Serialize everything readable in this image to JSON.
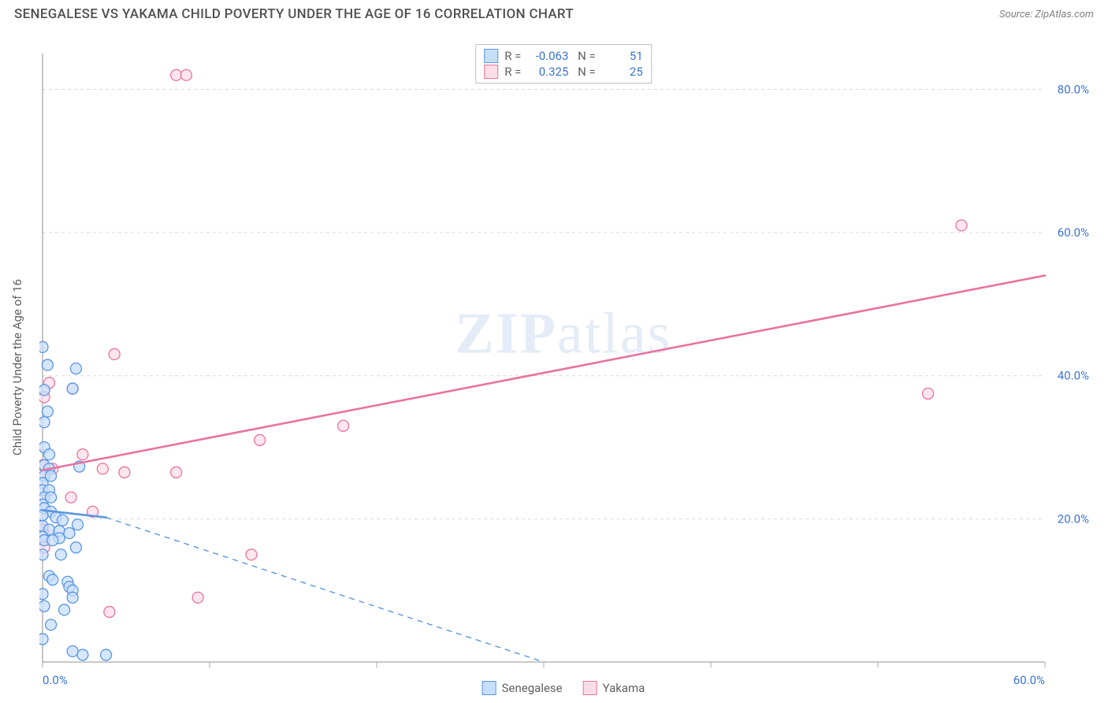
{
  "header": {
    "title": "SENEGALESE VS YAKAMA CHILD POVERTY UNDER THE AGE OF 16 CORRELATION CHART",
    "source": "Source: ZipAtlas.com"
  },
  "ylabel": "Child Poverty Under the Age of 16",
  "watermark": {
    "bold": "ZIP",
    "rest": "atlas"
  },
  "chart": {
    "type": "scatter",
    "xlim": [
      0,
      60
    ],
    "ylim": [
      0,
      85
    ],
    "x_ticks": [
      0,
      10,
      20,
      30,
      40,
      50,
      60
    ],
    "x_tick_labels": [
      "0.0%",
      "",
      "",
      "",
      "",
      "",
      "60.0%"
    ],
    "y_ticks": [
      0,
      20,
      40,
      60,
      80
    ],
    "y_tick_labels": [
      "",
      "20.0%",
      "40.0%",
      "60.0%",
      "80.0%"
    ],
    "grid_color": "#d9d9d9",
    "axis_color": "#a8a8a8",
    "axis_label_color": "#3b74d1",
    "background_color": "#ffffff",
    "marker_radius": 7,
    "marker_stroke_width": 1.3,
    "trend_width": 2.6
  },
  "series": [
    {
      "name": "Senegalese",
      "fill": "#c7defc",
      "stroke": "#5a96e0",
      "stats": {
        "R": "-0.063",
        "N": "51"
      },
      "trend": {
        "x1": 0,
        "y1": 21.2,
        "x2": 3.8,
        "y2": 20.2,
        "dashed_ext": {
          "x2": 30,
          "y2": 0
        }
      },
      "points": [
        [
          0.0,
          44.0
        ],
        [
          0.3,
          41.5
        ],
        [
          2.0,
          41.0
        ],
        [
          0.1,
          38.0
        ],
        [
          1.8,
          38.2
        ],
        [
          0.3,
          35.0
        ],
        [
          0.1,
          33.5
        ],
        [
          0.1,
          30.0
        ],
        [
          0.4,
          29.0
        ],
        [
          0.1,
          27.5
        ],
        [
          0.4,
          27.0
        ],
        [
          2.2,
          27.3
        ],
        [
          0.1,
          26.0
        ],
        [
          0.5,
          26.0
        ],
        [
          0.0,
          25.0
        ],
        [
          0.0,
          24.0
        ],
        [
          0.4,
          24.0
        ],
        [
          0.1,
          23.0
        ],
        [
          0.5,
          23.0
        ],
        [
          0.0,
          22.0
        ],
        [
          0.1,
          21.5
        ],
        [
          0.5,
          21.0
        ],
        [
          0.0,
          20.5
        ],
        [
          0.8,
          20.2
        ],
        [
          1.2,
          19.8
        ],
        [
          2.1,
          19.2
        ],
        [
          0.0,
          19.0
        ],
        [
          0.4,
          18.5
        ],
        [
          1.0,
          18.3
        ],
        [
          1.6,
          18.0
        ],
        [
          0.0,
          17.5
        ],
        [
          1.0,
          17.3
        ],
        [
          0.1,
          17.0
        ],
        [
          0.6,
          17.0
        ],
        [
          2.0,
          16.0
        ],
        [
          0.0,
          15.0
        ],
        [
          1.1,
          15.0
        ],
        [
          0.4,
          12.0
        ],
        [
          0.6,
          11.5
        ],
        [
          1.5,
          11.2
        ],
        [
          1.6,
          10.5
        ],
        [
          1.8,
          10.0
        ],
        [
          0.0,
          9.5
        ],
        [
          1.8,
          9.0
        ],
        [
          0.1,
          7.8
        ],
        [
          1.3,
          7.3
        ],
        [
          0.5,
          5.2
        ],
        [
          0.0,
          3.2
        ],
        [
          1.8,
          1.5
        ],
        [
          2.4,
          1.0
        ],
        [
          3.8,
          1.0
        ]
      ]
    },
    {
      "name": "Yakama",
      "fill": "#ffdde8",
      "stroke": "#e873a0",
      "stats": {
        "R": "0.325",
        "N": "25"
      },
      "trend": {
        "x1": 0,
        "y1": 26.8,
        "x2": 60,
        "y2": 54.0
      },
      "points": [
        [
          8.0,
          82.0
        ],
        [
          8.6,
          82.0
        ],
        [
          55.0,
          61.0
        ],
        [
          4.3,
          43.0
        ],
        [
          0.4,
          39.0
        ],
        [
          1.8,
          38.2
        ],
        [
          53.0,
          37.5
        ],
        [
          0.1,
          37.0
        ],
        [
          18.0,
          33.0
        ],
        [
          13.0,
          31.0
        ],
        [
          2.4,
          29.0
        ],
        [
          0.0,
          27.5
        ],
        [
          0.6,
          27.0
        ],
        [
          3.6,
          27.0
        ],
        [
          4.9,
          26.5
        ],
        [
          8.0,
          26.5
        ],
        [
          0.1,
          26.0
        ],
        [
          1.7,
          23.0
        ],
        [
          3.0,
          21.0
        ],
        [
          0.0,
          18.5
        ],
        [
          0.1,
          17.8
        ],
        [
          0.1,
          16.0
        ],
        [
          12.5,
          15.0
        ],
        [
          9.3,
          9.0
        ],
        [
          4.0,
          7.0
        ]
      ]
    }
  ],
  "legend": {
    "items": [
      {
        "label": "Senegalese",
        "fill": "#c7defc",
        "stroke": "#5a96e0"
      },
      {
        "label": "Yakama",
        "fill": "#ffdde8",
        "stroke": "#e873a0"
      }
    ]
  }
}
